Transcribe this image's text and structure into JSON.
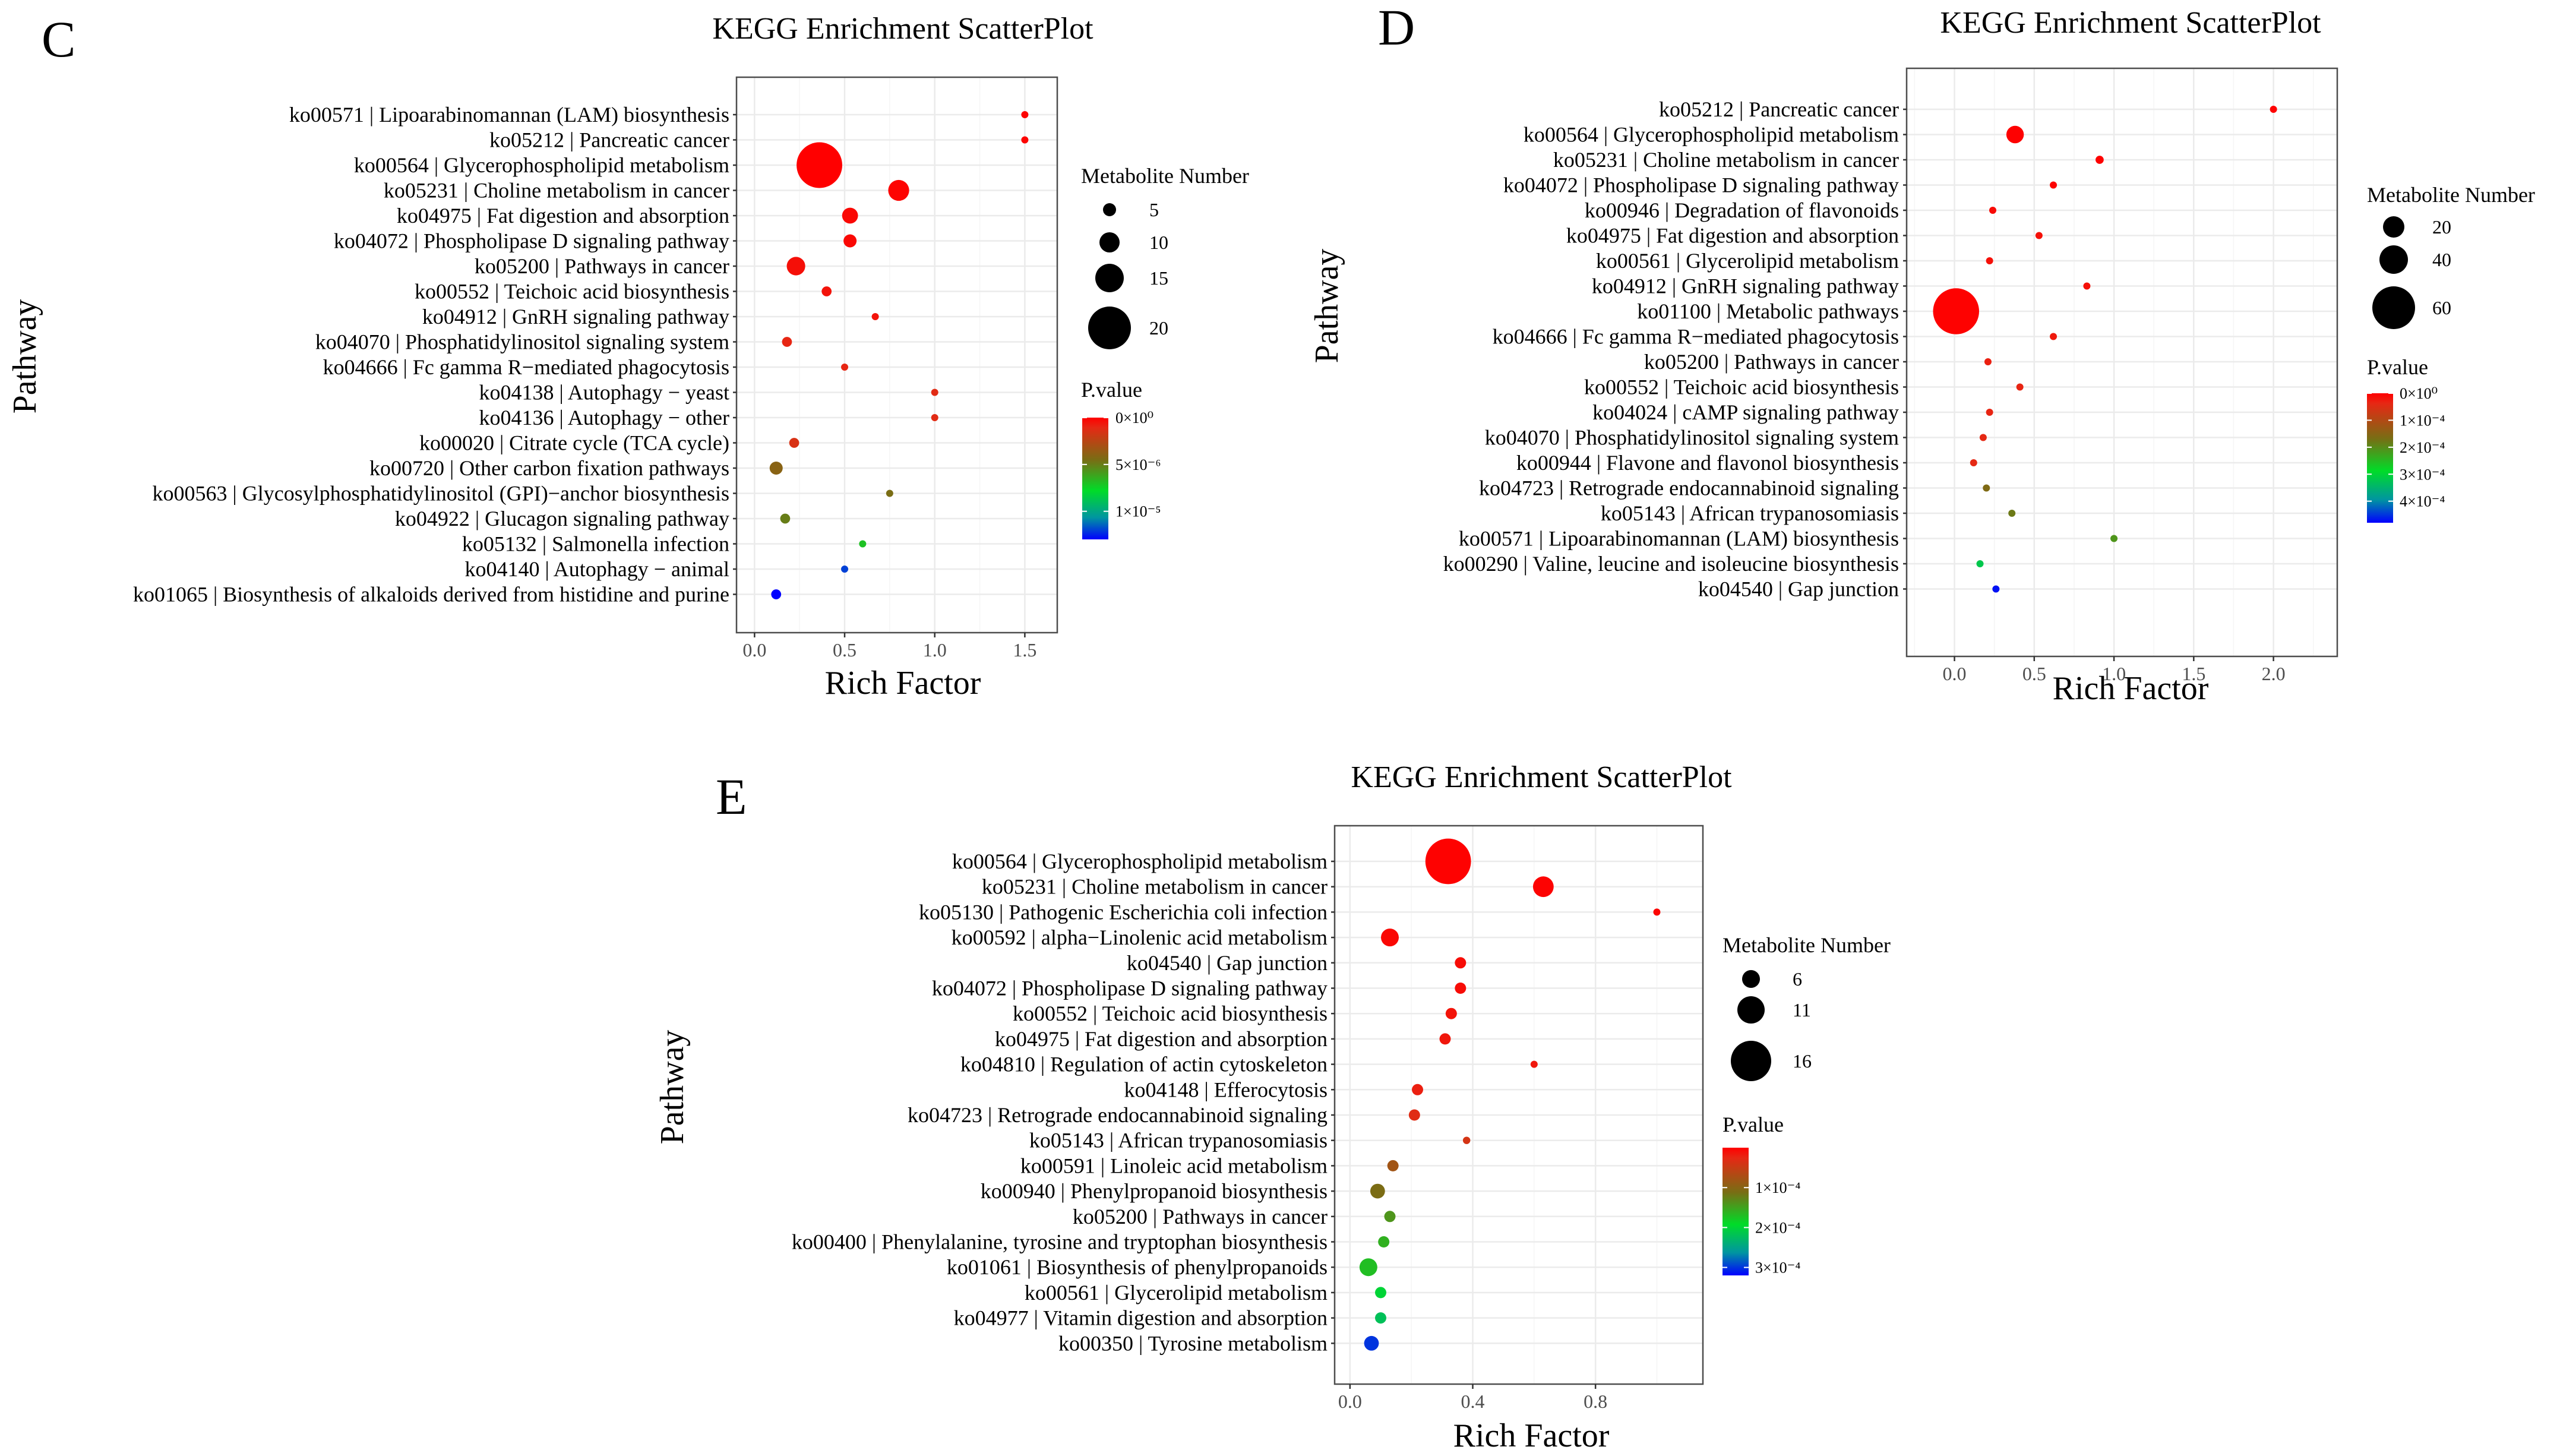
{
  "chart_data": [
    {
      "type": "scatter",
      "panel_label": "C",
      "title": "KEGG Enrichment ScatterPlot",
      "xlabel": "Rich Factor",
      "ylabel": "Pathway",
      "xlim": [
        -0.1,
        1.68
      ],
      "xticks": [
        0,
        0.5,
        1,
        1.5
      ],
      "xtick_labels": [
        "0.0",
        "0.5",
        "1.0",
        "1.5"
      ],
      "size_legend": {
        "title": "Metabolite Number",
        "values": [
          5,
          10,
          15,
          20
        ],
        "labels": [
          "5",
          "10",
          "15",
          "20"
        ]
      },
      "color_legend": {
        "title": "P.value",
        "range": [
          0,
          1.3e-05
        ],
        "ticks": [
          0,
          5e-06,
          1e-05
        ],
        "labels": [
          "0×10⁰",
          "5×10⁻⁶",
          "1×10⁻⁵"
        ]
      },
      "points": [
        {
          "pathway": "ko00571 | Lipoarabinomannan (LAM) biosynthesis",
          "x": 1.5,
          "size": 2,
          "p": 1e-07
        },
        {
          "pathway": "ko05212 | Pancreatic cancer",
          "x": 1.5,
          "size": 2,
          "p": 1e-07
        },
        {
          "pathway": "ko00564 | Glycerophospholipid metabolism",
          "x": 0.36,
          "size": 22,
          "p": 0
        },
        {
          "pathway": "ko05231 | Choline metabolism in cancer",
          "x": 0.8,
          "size": 8,
          "p": 1e-07
        },
        {
          "pathway": "ko04975 | Fat digestion and absorption",
          "x": 0.53,
          "size": 6,
          "p": 2e-07
        },
        {
          "pathway": "ko04072 | Phospholipase D signaling pathway",
          "x": 0.53,
          "size": 5,
          "p": 2e-07
        },
        {
          "pathway": "ko05200 | Pathways in cancer",
          "x": 0.23,
          "size": 7,
          "p": 4e-07
        },
        {
          "pathway": "ko00552 | Teichoic acid biosynthesis",
          "x": 0.4,
          "size": 4,
          "p": 5e-07
        },
        {
          "pathway": "ko04912 | GnRH signaling pathway",
          "x": 0.67,
          "size": 3,
          "p": 5e-07
        },
        {
          "pathway": "ko04070 | Phosphatidylinositol signaling system",
          "x": 0.18,
          "size": 4,
          "p": 1e-06
        },
        {
          "pathway": "ko04666 | Fc gamma R−mediated phagocytosis",
          "x": 0.5,
          "size": 3,
          "p": 1e-06
        },
        {
          "pathway": "ko04138 | Autophagy − yeast",
          "x": 1.0,
          "size": 2,
          "p": 1.2e-06
        },
        {
          "pathway": "ko04136 | Autophagy − other",
          "x": 1.0,
          "size": 2,
          "p": 1.2e-06
        },
        {
          "pathway": "ko00020 | Citrate cycle (TCA cycle)",
          "x": 0.22,
          "size": 4,
          "p": 1.5e-06
        },
        {
          "pathway": "ko00720 | Other carbon fixation pathways",
          "x": 0.12,
          "size": 5,
          "p": 4e-06
        },
        {
          "pathway": "ko00563 | Glycosylphosphatidylinositol (GPI)−anchor biosynthesis",
          "x": 0.75,
          "size": 2,
          "p": 4.5e-06
        },
        {
          "pathway": "ko04922 | Glucagon signaling pathway",
          "x": 0.17,
          "size": 4,
          "p": 5e-06
        },
        {
          "pathway": "ko05132 | Salmonella infection",
          "x": 0.6,
          "size": 2,
          "p": 7e-06
        },
        {
          "pathway": "ko04140 | Autophagy − animal",
          "x": 0.5,
          "size": 2,
          "p": 1.2e-05
        },
        {
          "pathway": "ko01065 | Biosynthesis of alkaloids derived from histidine and purine",
          "x": 0.12,
          "size": 4,
          "p": 1.3e-05
        }
      ]
    },
    {
      "type": "scatter",
      "panel_label": "D",
      "title": "KEGG Enrichment ScatterPlot",
      "xlabel": "Rich Factor",
      "ylabel": "Pathway",
      "xlim": [
        -0.3,
        2.4
      ],
      "xticks": [
        0,
        0.5,
        1,
        1.5,
        2
      ],
      "xtick_labels": [
        "0.0",
        "0.5",
        "1.0",
        "1.5",
        "2.0"
      ],
      "size_legend": {
        "title": "Metabolite Number",
        "values": [
          20,
          40,
          60
        ],
        "labels": [
          "20",
          "40",
          "60"
        ]
      },
      "color_legend": {
        "title": "P.value",
        "range": [
          0,
          0.00048
        ],
        "ticks": [
          0,
          0.0001,
          0.0002,
          0.0003,
          0.0004
        ],
        "labels": [
          "0×10⁰",
          "1×10⁻⁴",
          "2×10⁻⁴",
          "3×10⁻⁴",
          "4×10⁻⁴"
        ]
      },
      "points": [
        {
          "pathway": "ko05212 | Pancreatic cancer",
          "x": 2.0,
          "size": 1,
          "p": 2e-06
        },
        {
          "pathway": "ko00564 | Glycerophospholipid metabolism",
          "x": 0.38,
          "size": 15,
          "p": 1e-06
        },
        {
          "pathway": "ko05231 | Choline metabolism in cancer",
          "x": 0.91,
          "size": 6,
          "p": 2e-06
        },
        {
          "pathway": "ko04072 | Phospholipase D signaling pathway",
          "x": 0.62,
          "size": 5,
          "p": 3e-06
        },
        {
          "pathway": "ko00946 | Degradation of flavonoids",
          "x": 0.24,
          "size": 5,
          "p": 1e-05
        },
        {
          "pathway": "ko04975 | Fat digestion and absorption",
          "x": 0.53,
          "size": 4,
          "p": 1.5e-05
        },
        {
          "pathway": "ko00561 | Glycerolipid metabolism",
          "x": 0.22,
          "size": 5,
          "p": 1.5e-05
        },
        {
          "pathway": "ko04912 | GnRH signaling pathway",
          "x": 0.83,
          "size": 3,
          "p": 1.5e-05
        },
        {
          "pathway": "ko01100 | Metabolic pathways",
          "x": 0.01,
          "size": 68,
          "p": 2e-06
        },
        {
          "pathway": "ko04666 | Fc gamma R−mediated phagocytosis",
          "x": 0.62,
          "size": 3,
          "p": 2.5e-05
        },
        {
          "pathway": "ko05200 | Pathways in cancer",
          "x": 0.21,
          "size": 5,
          "p": 3e-05
        },
        {
          "pathway": "ko00552 | Teichoic acid biosynthesis",
          "x": 0.41,
          "size": 3,
          "p": 3.5e-05
        },
        {
          "pathway": "ko04024 | cAMP signaling pathway",
          "x": 0.22,
          "size": 4,
          "p": 3.5e-05
        },
        {
          "pathway": "ko04070 | Phosphatidylinositol signaling system",
          "x": 0.18,
          "size": 4,
          "p": 4e-05
        },
        {
          "pathway": "ko00944 | Flavone and flavonol biosynthesis",
          "x": 0.12,
          "size": 4,
          "p": 4e-05
        },
        {
          "pathway": "ko04723 | Retrograde endocannabinoid signaling",
          "x": 0.2,
          "size": 4,
          "p": 0.00016
        },
        {
          "pathway": "ko05143 | African trypanosomiasis",
          "x": 0.36,
          "size": 3,
          "p": 0.00018
        },
        {
          "pathway": "ko00571 | Lipoarabinomannan (LAM) biosynthesis",
          "x": 1.0,
          "size": 1,
          "p": 0.00021
        },
        {
          "pathway": "ko00290 | Valine, leucine and isoleucine biosynthesis",
          "x": 0.16,
          "size": 4,
          "p": 0.00032
        },
        {
          "pathway": "ko04540 | Gap junction",
          "x": 0.26,
          "size": 3,
          "p": 0.00047
        }
      ]
    },
    {
      "type": "scatter",
      "panel_label": "E",
      "title": "KEGG Enrichment ScatterPlot",
      "xlabel": "Rich Factor",
      "ylabel": "Pathway",
      "xlim": [
        -0.05,
        1.15
      ],
      "xticks": [
        0,
        0.4,
        0.8
      ],
      "xtick_labels": [
        "0.0",
        "0.4",
        "0.8"
      ],
      "size_legend": {
        "title": "Metabolite Number",
        "values": [
          6,
          11,
          16
        ],
        "labels": [
          "6",
          "11",
          "16"
        ]
      },
      "color_legend": {
        "title": "P.value",
        "range": [
          0,
          0.00032
        ],
        "ticks": [
          0.0001,
          0.0002,
          0.0003
        ],
        "labels": [
          "1×10⁻⁴",
          "2×10⁻⁴",
          "3×10⁻⁴"
        ]
      },
      "points": [
        {
          "pathway": "ko00564 | Glycerophospholipid metabolism",
          "x": 0.32,
          "size": 19,
          "p": 1e-06
        },
        {
          "pathway": "ko05231 | Choline metabolism in cancer",
          "x": 0.63,
          "size": 7,
          "p": 2e-06
        },
        {
          "pathway": "ko05130 | Pathogenic Escherichia coli infection",
          "x": 1.0,
          "size": 2,
          "p": 3e-06
        },
        {
          "pathway": "ko00592 | alpha−Linolenic acid metabolism",
          "x": 0.13,
          "size": 6,
          "p": 5e-06
        },
        {
          "pathway": "ko04540 | Gap junction",
          "x": 0.36,
          "size": 4,
          "p": 8e-06
        },
        {
          "pathway": "ko04072 | Phospholipase D signaling pathway",
          "x": 0.36,
          "size": 4,
          "p": 8e-06
        },
        {
          "pathway": "ko00552 | Teichoic acid biosynthesis",
          "x": 0.33,
          "size": 4,
          "p": 1.2e-05
        },
        {
          "pathway": "ko04975 | Fat digestion and absorption",
          "x": 0.31,
          "size": 4,
          "p": 1.5e-05
        },
        {
          "pathway": "ko04810 | Regulation of actin cytoskeleton",
          "x": 0.6,
          "size": 2,
          "p": 1.5e-05
        },
        {
          "pathway": "ko04148 | Efferocytosis",
          "x": 0.22,
          "size": 4,
          "p": 2e-05
        },
        {
          "pathway": "ko04723 | Retrograde endocannabinoid signaling",
          "x": 0.21,
          "size": 4,
          "p": 3e-05
        },
        {
          "pathway": "ko05143 | African trypanosomiasis",
          "x": 0.38,
          "size": 3,
          "p": 4e-05
        },
        {
          "pathway": "ko00591 | Linoleic acid metabolism",
          "x": 0.14,
          "size": 4,
          "p": 8e-05
        },
        {
          "pathway": "ko00940 | Phenylpropanoid biosynthesis",
          "x": 0.09,
          "size": 5,
          "p": 0.00011
        },
        {
          "pathway": "ko05200 | Pathways in cancer",
          "x": 0.13,
          "size": 4,
          "p": 0.00014
        },
        {
          "pathway": "ko00400 | Phenylalanine, tyrosine and tryptophan biosynthesis",
          "x": 0.11,
          "size": 4,
          "p": 0.00016
        },
        {
          "pathway": "ko01061 | Biosynthesis of phenylpropanoids",
          "x": 0.06,
          "size": 6,
          "p": 0.00017
        },
        {
          "pathway": "ko00561 | Glycerolipid metabolism",
          "x": 0.1,
          "size": 4,
          "p": 0.0002
        },
        {
          "pathway": "ko04977 | Vitamin digestion and absorption",
          "x": 0.1,
          "size": 4,
          "p": 0.00022
        },
        {
          "pathway": "ko00350 | Tyrosine metabolism",
          "x": 0.07,
          "size": 5,
          "p": 0.0003
        }
      ]
    }
  ]
}
